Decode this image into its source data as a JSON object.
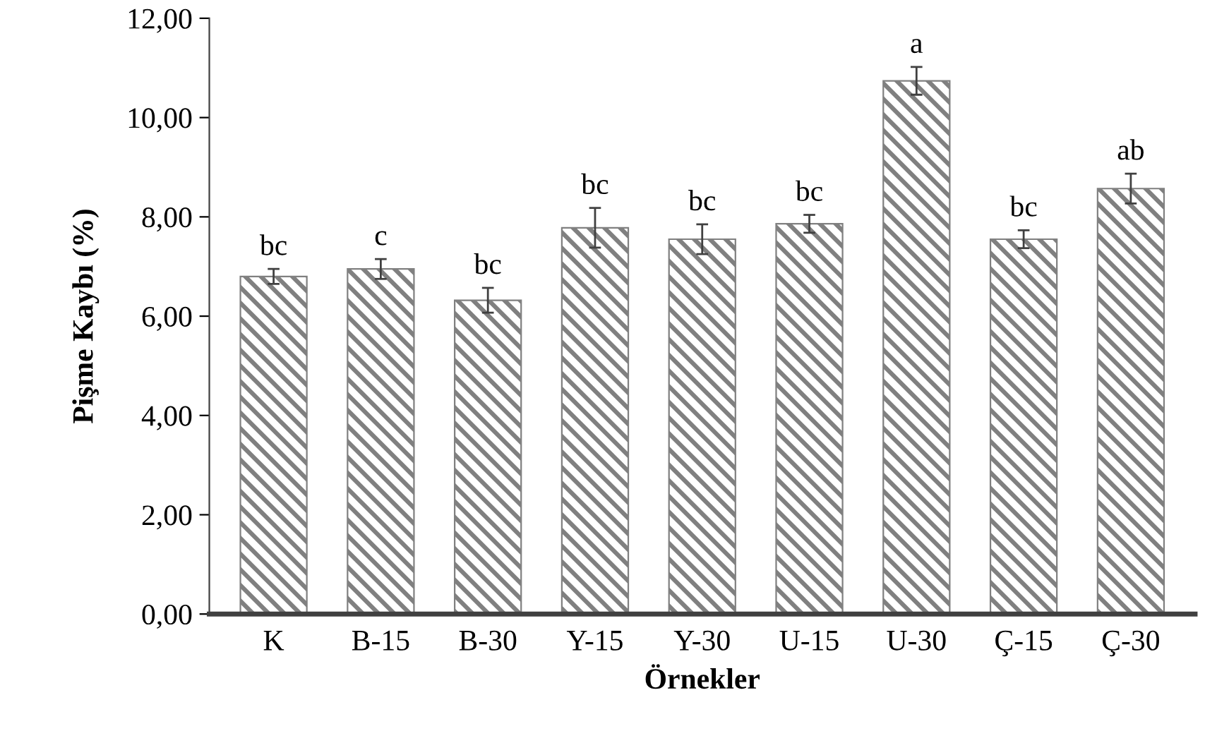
{
  "chart_data": {
    "type": "bar",
    "xlabel": "Örnekler",
    "ylabel": "Pişme Kaybı (%)",
    "categories": [
      "K",
      "B-15",
      "B-30",
      "Y-15",
      "Y-30",
      "U-15",
      "U-30",
      "Ç-15",
      "Ç-30"
    ],
    "values": [
      6.8,
      6.95,
      6.32,
      7.78,
      7.55,
      7.86,
      10.74,
      7.55,
      8.57
    ],
    "errors": [
      0.15,
      0.2,
      0.25,
      0.4,
      0.3,
      0.18,
      0.28,
      0.18,
      0.3
    ],
    "color": "#808080",
    "ylim": [
      0,
      12
    ],
    "yticks": [
      {
        "value": 0,
        "label": "0,00"
      },
      {
        "value": 2,
        "label": "2,00"
      },
      {
        "value": 4,
        "label": "4,00"
      },
      {
        "value": 6,
        "label": "6,00"
      },
      {
        "value": 8,
        "label": "8,00"
      },
      {
        "value": 10,
        "label": "10,00"
      },
      {
        "value": 12,
        "label": "12,00"
      }
    ],
    "grid": false,
    "annotations": [
      {
        "text": "bc",
        "x": "K",
        "y": 6.95
      },
      {
        "text": "c",
        "x": "B-15",
        "y": 7.15
      },
      {
        "text": "bc",
        "x": "B-30",
        "y": 6.57
      },
      {
        "text": "bc",
        "x": "Y-15",
        "y": 8.18
      },
      {
        "text": "bc",
        "x": "Y-30",
        "y": 7.85
      },
      {
        "text": "bc",
        "x": "U-15",
        "y": 8.04
      },
      {
        "text": "a",
        "x": "U-30",
        "y": 11.02
      },
      {
        "text": "bc",
        "x": "Ç-15",
        "y": 7.73
      },
      {
        "text": "ab",
        "x": "Ç-30",
        "y": 8.87
      }
    ]
  }
}
